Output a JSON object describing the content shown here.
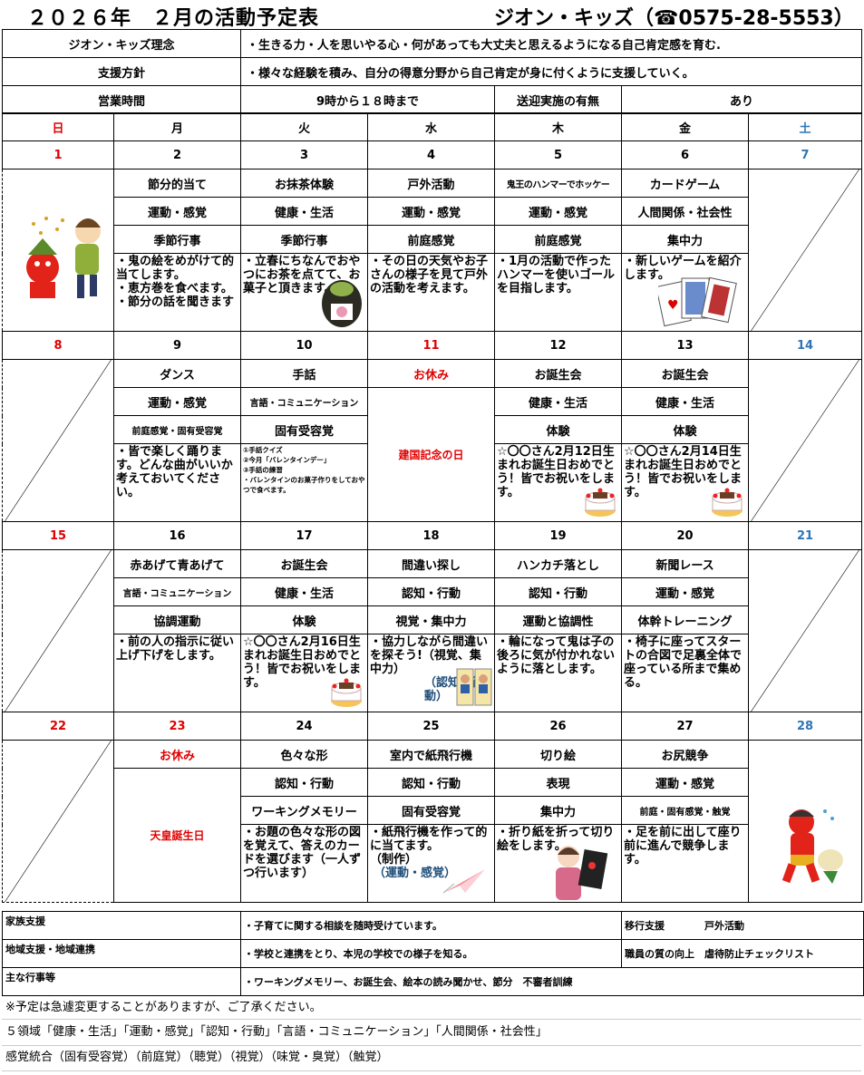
{
  "header": {
    "title": "２０２６年　２月の活動予定表",
    "contact": "ジオン・キッズ（☎0575-28-5553）"
  },
  "info": {
    "philosophy_label": "ジオン・キッズ理念",
    "philosophy": "・生きる力・人を思いやる心・何があっても大丈夫と思えるようになる自己肯定感を育む.",
    "policy_label": "支援方針",
    "policy": "・様々な経験を積み、自分の得意分野から自己肯定が身に付くように支援していく。",
    "hours_label": "営業時間",
    "hours": "9時から１８時まで",
    "transport_label": "送迎実施の有無",
    "transport": "あり"
  },
  "weekdays": [
    "日",
    "月",
    "火",
    "水",
    "木",
    "金",
    "土"
  ],
  "colors": {
    "sunday": "#e00000",
    "saturday": "#2e75b6",
    "note": "#1f4e79"
  },
  "weeks": [
    {
      "dates": [
        "1",
        "2",
        "3",
        "4",
        "5",
        "6",
        "7"
      ],
      "red_dates": [
        0
      ],
      "sun": "illustration-setsubun",
      "sat": "diagonal",
      "days": [
        {
          "activity": "節分的当て",
          "domain": "運動・感覚",
          "sense": "季節行事",
          "desc": "・鬼の絵をめがけて的当てします。\n・恵方巻を食べます。\n・節分の話を聞きます",
          "icon": ""
        },
        {
          "activity": "お抹茶体験",
          "domain": "健康・生活",
          "sense": "季節行事",
          "desc": "・立春にちなんでおやつにお茶を点てて、お菓子と頂きます。",
          "icon": "tea"
        },
        {
          "activity": "戸外活動",
          "domain": "運動・感覚",
          "sense": "前庭感覚",
          "desc": "・その日の天気やお子さんの様子を見て戸外の活動を考えます。",
          "icon": ""
        },
        {
          "activity": "鬼王のハンマーでホッケー",
          "domain": "運動・感覚",
          "sense": "前庭感覚",
          "desc": "・1月の活動で作ったハンマーを使いゴールを目指します。",
          "icon": "",
          "small_title": true
        },
        {
          "activity": "カードゲーム",
          "domain": "人間関係・社会性",
          "sense": "集中力",
          "desc": "・新しいゲームを紹介します。",
          "icon": "cards"
        }
      ]
    },
    {
      "dates": [
        "8",
        "9",
        "10",
        "11",
        "12",
        "13",
        "14"
      ],
      "red_dates": [
        0,
        3
      ],
      "sun": "diagonal",
      "sat": "diagonal",
      "days": [
        {
          "activity": "ダンス",
          "domain": "運動・感覚",
          "sense": "前庭感覚・固有受容覚",
          "desc": "・皆で楽しく踊ります。どんな曲がいいか考えておいてください。",
          "icon": "",
          "small_sense": true
        },
        {
          "activity": "手話",
          "domain": "言語・コミュニケーション",
          "sense": "固有受容覚",
          "desc": "①手話クイズ\n②今月「バレンタインデー」\n③手話の練習\n・バレンタインのお菓子作りをしておやつで食べます。",
          "icon": "",
          "small_domain": true,
          "tiny": true
        },
        {
          "activity": "お休み",
          "holiday": "建国記念の日"
        },
        {
          "activity": "お誕生会",
          "domain": "健康・生活",
          "sense": "体験",
          "desc": "☆〇〇さん2月12日生まれお誕生日おめでとう！皆でお祝いをします。",
          "icon": "cake"
        },
        {
          "activity": "お誕生会",
          "domain": "健康・生活",
          "sense": "体験",
          "desc": "☆〇〇さん2月14日生まれお誕生日おめでとう！皆でお祝いをします。",
          "icon": "cake"
        }
      ]
    },
    {
      "dates": [
        "15",
        "16",
        "17",
        "18",
        "19",
        "20",
        "21"
      ],
      "red_dates": [
        0
      ],
      "sun": "diagonal",
      "sat": "diagonal",
      "days": [
        {
          "activity": "赤あげて青あげて",
          "domain": "言語・コミュニケーション",
          "sense": "協調運動",
          "desc": "・前の人の指示に従い上げ下げをします。",
          "icon": "",
          "small_domain": true
        },
        {
          "activity": "お誕生会",
          "domain": "健康・生活",
          "sense": "体験",
          "desc": "☆〇〇さん2月16日生まれお誕生日おめでとう！皆でお祝いをします。",
          "icon": "cake"
        },
        {
          "activity": "間違い探し",
          "domain": "認知・行動",
          "sense": "視覚・集中力",
          "desc": "・協力しながら間違いを探そう!（視覚、集中力）",
          "note": "（認知・行動）",
          "icon": "pictures"
        },
        {
          "activity": "ハンカチ落とし",
          "domain": "認知・行動",
          "sense": "運動と協調性",
          "desc": "・輪になって鬼は子の後ろに気が付かれないように落とします。",
          "icon": ""
        },
        {
          "activity": "新聞レース",
          "domain": "運動・感覚",
          "sense": "体幹トレーニング",
          "desc": "・椅子に座ってスタートの合図で足裏全体で座っている所まで集める。",
          "icon": ""
        }
      ]
    },
    {
      "dates": [
        "22",
        "23",
        "24",
        "25",
        "26",
        "27",
        "28"
      ],
      "red_dates": [
        0,
        1
      ],
      "sun": "diagonal",
      "sat": "illustration-oni",
      "days": [
        {
          "activity": "お休み",
          "holiday": "天皇誕生日"
        },
        {
          "activity": "色々な形",
          "domain": "認知・行動",
          "sense": "ワーキングメモリー",
          "desc": "・お題の色々な形の図を覚えて、答えのカードを選びます（一人ずつ行います）",
          "icon": ""
        },
        {
          "activity": "室内で紙飛行機",
          "domain": "認知・行動",
          "sense": "固有受容覚",
          "desc": "・紙飛行機を作って的に当てます。\n（制作）",
          "note": "（運動・感覚）",
          "icon": "plane"
        },
        {
          "activity": "切り絵",
          "domain": "表現",
          "sense": "集中力",
          "desc": "・折り紙を折って切り絵をします。",
          "icon": "girl"
        },
        {
          "activity": "お尻競争",
          "domain": "運動・感覚",
          "sense": "前庭・固有感覚・触覚",
          "desc": "・足を前に出して座り前に進んで競争します。",
          "icon": "",
          "small_sense": true
        }
      ]
    }
  ],
  "bottom": {
    "family_label": "家族支援",
    "family": "・子育てに関する相談を随時受けています。",
    "transition": "移行支援　　　　戸外活動",
    "community_label": "地域支援・地域連携",
    "community": "・学校と連携をとり、本児の学校での様子を知る。",
    "staff": "職員の質の向上　虐待防止チェックリスト",
    "events_label": "主な行事等",
    "events": "・ワーキングメモリー、お誕生会、絵本の読み聞かせ、節分　不審者訓練"
  },
  "notes": [
    "※予定は急遽変更することがありますが、ご了承ください。",
    "５領域「健康・生活」「運動・感覚」「認知・行動」「言語・コミュニケーション」「人間関係・社会性」",
    "感覚統合（固有受容覚）（前庭覚）（聴覚）（視覚）（味覚・臭覚）（触覚）"
  ]
}
